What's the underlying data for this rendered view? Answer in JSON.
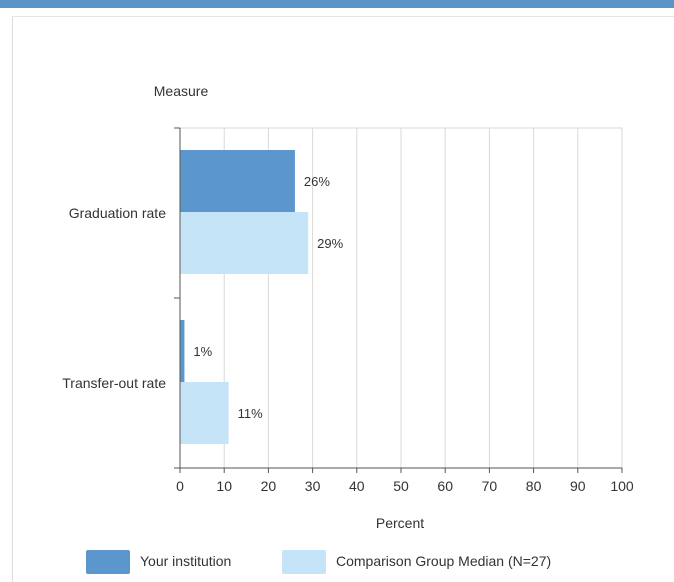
{
  "chart_data": {
    "type": "bar",
    "orientation": "horizontal",
    "y_axis_title": "Measure",
    "x_axis_title": "Percent",
    "categories": [
      "Graduation rate",
      "Transfer-out rate"
    ],
    "series": [
      {
        "name": "Your institution",
        "values": [
          26,
          1
        ],
        "labels": [
          "26%",
          "1%"
        ]
      },
      {
        "name": "Comparison Group Median (N=27)",
        "values": [
          29,
          11
        ],
        "labels": [
          "29%",
          "11%"
        ]
      }
    ],
    "xlim": [
      0,
      100
    ],
    "x_ticks": [
      "0",
      "10",
      "20",
      "30",
      "40",
      "50",
      "60",
      "70",
      "80",
      "90",
      "100"
    ],
    "grid": true,
    "legend_position": "bottom",
    "colors": [
      "#5b97cc",
      "#c6e4f7"
    ]
  }
}
